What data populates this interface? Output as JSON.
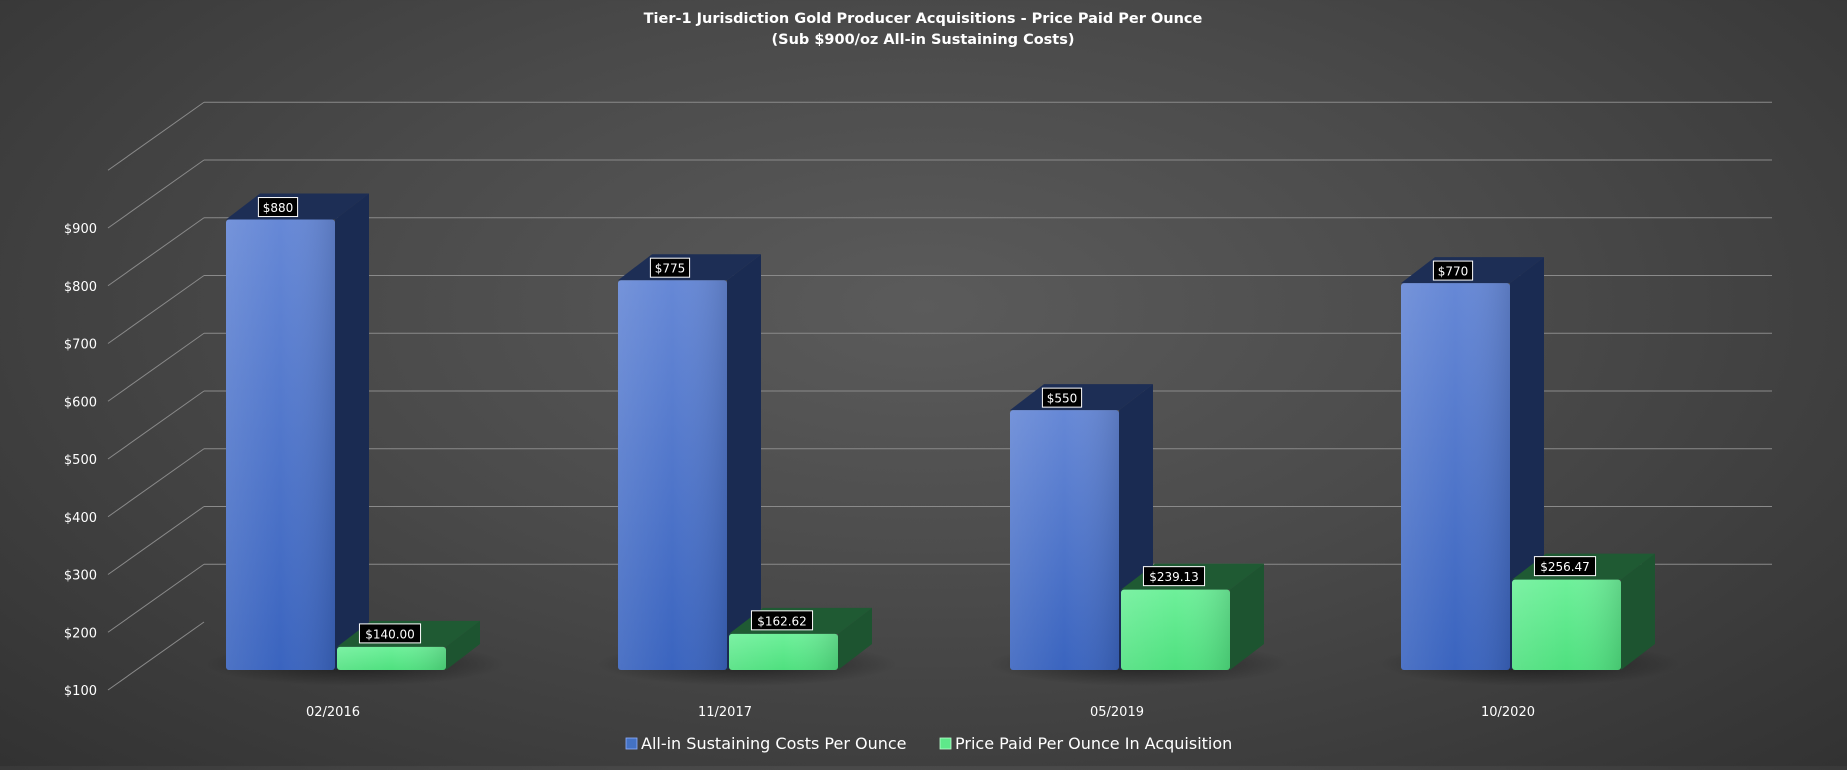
{
  "chart_data": {
    "type": "bar",
    "title": "Tier-1 Jurisdiction Gold Producer Acquisitions - Price Paid Per Ounce",
    "subtitle": "(Sub $900/oz All-in Sustaining Costs)",
    "categories": [
      "02/2016",
      "11/2017",
      "05/2019",
      "10/2020"
    ],
    "series": [
      {
        "name": "All-in Sustaining Costs Per Ounce",
        "values": [
          880,
          775,
          550,
          770
        ],
        "labels": [
          "$880",
          "$775",
          "$550",
          "$770"
        ],
        "color": "#4472c4"
      },
      {
        "name": "Price Paid Per Ounce In Acquisition",
        "values": [
          140,
          162.62,
          239.13,
          256.47
        ],
        "labels": [
          "$140.00",
          "$162.62",
          "$239.13",
          "$256.47"
        ],
        "color": "#5ee88a"
      }
    ],
    "yticks": [
      "$100",
      "$200",
      "$300",
      "$400",
      "$500",
      "$600",
      "$700",
      "$800",
      "$900"
    ],
    "ylim": [
      100,
      1000
    ],
    "grid": true,
    "legend": "bottom",
    "style": "3d-column"
  }
}
